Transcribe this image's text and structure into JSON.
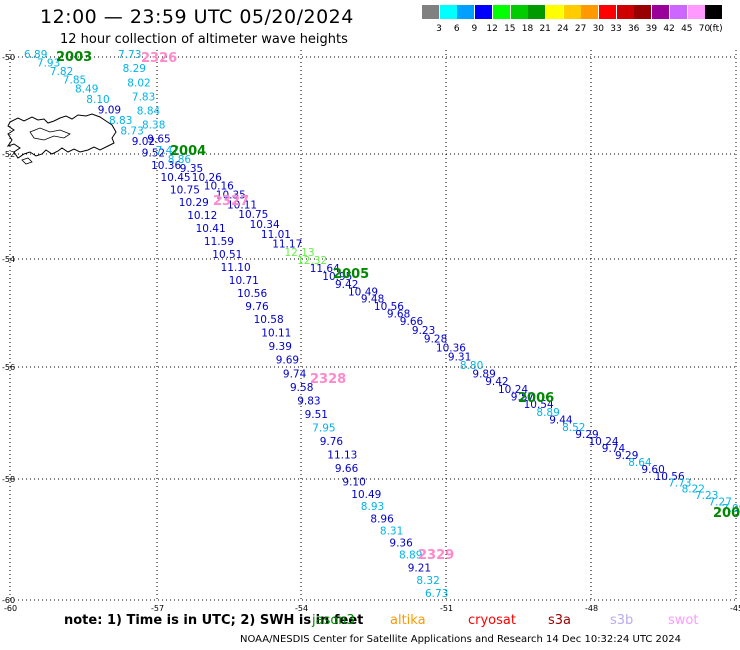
{
  "header": {
    "title": "12:00 — 23:59 UTC 05/20/2024",
    "subtitle": "12 hour collection of altimeter wave heights"
  },
  "legend": {
    "unit": "(ft)",
    "items": [
      {
        "label": "3",
        "color": "#808080"
      },
      {
        "label": "6",
        "color": "#00ffff"
      },
      {
        "label": "9",
        "color": "#00a0ff"
      },
      {
        "label": "12",
        "color": "#0000ff"
      },
      {
        "label": "15",
        "color": "#00ff00"
      },
      {
        "label": "18",
        "color": "#00cc00"
      },
      {
        "label": "21",
        "color": "#009900"
      },
      {
        "label": "24",
        "color": "#ffff00"
      },
      {
        "label": "27",
        "color": "#ffcc00"
      },
      {
        "label": "30",
        "color": "#ff9900"
      },
      {
        "label": "33",
        "color": "#ff0000"
      },
      {
        "label": "36",
        "color": "#cc0000"
      },
      {
        "label": "39",
        "color": "#990000"
      },
      {
        "label": "42",
        "color": "#990099"
      },
      {
        "label": "45",
        "color": "#cc66ff"
      },
      {
        "label": "70",
        "color": "#ff99ff"
      },
      {
        "label": "",
        "color": "#000000"
      }
    ]
  },
  "axes": {
    "lat_labels": [
      "-50",
      "-52",
      "-54",
      "-56",
      "-58",
      "-60"
    ],
    "lon_labels": [
      "-60",
      "-57",
      "-54",
      "-51",
      "-48",
      "-45"
    ]
  },
  "colors": {
    "blue": "#0000cc",
    "cyan": "#00b4e6",
    "pink": "#ff88cc",
    "green": "#008800",
    "lightgreen": "#66ee44"
  },
  "tracks": [
    {
      "name": "trackA",
      "points": [
        {
          "v": "6.89",
          "c": "cyan"
        },
        {
          "v": "7.93",
          "c": "cyan"
        },
        {
          "v": "7.82",
          "c": "cyan"
        },
        {
          "v": "7.85",
          "c": "cyan"
        },
        {
          "v": "8.49",
          "c": "cyan"
        },
        {
          "v": "8.10",
          "c": "cyan"
        },
        {
          "v": "9.09",
          "c": "blue"
        },
        {
          "v": "8.83",
          "c": "cyan"
        },
        {
          "v": "8.73",
          "c": "cyan"
        },
        {
          "v": "9.02",
          "c": "blue"
        },
        {
          "v": "9.52",
          "c": "blue"
        },
        {
          "v": "10.36",
          "c": "blue"
        },
        {
          "v": "10.45",
          "c": "blue"
        },
        {
          "v": "10.75",
          "c": "blue"
        },
        {
          "v": "10.29",
          "c": "blue"
        },
        {
          "v": "10.12",
          "c": "blue"
        },
        {
          "v": "10.41",
          "c": "blue"
        },
        {
          "v": "11.59",
          "c": "blue"
        },
        {
          "v": "10.51",
          "c": "blue"
        },
        {
          "v": "11.10",
          "c": "blue"
        },
        {
          "v": "10.71",
          "c": "blue"
        },
        {
          "v": "10.56",
          "c": "blue"
        },
        {
          "v": "9.76",
          "c": "blue"
        },
        {
          "v": "10.58",
          "c": "blue"
        },
        {
          "v": "10.11",
          "c": "blue"
        },
        {
          "v": "9.39",
          "c": "blue"
        },
        {
          "v": "9.69",
          "c": "blue"
        },
        {
          "v": "9.74",
          "c": "blue"
        },
        {
          "v": "9.58",
          "c": "blue"
        },
        {
          "v": "9.83",
          "c": "blue"
        },
        {
          "v": "9.51",
          "c": "blue"
        },
        {
          "v": "7.95",
          "c": "cyan"
        },
        {
          "v": "9.76",
          "c": "blue"
        },
        {
          "v": "11.13",
          "c": "blue"
        },
        {
          "v": "9.66",
          "c": "blue"
        },
        {
          "v": "9.10",
          "c": "blue"
        },
        {
          "v": "10.49",
          "c": "blue"
        },
        {
          "v": "8.93",
          "c": "cyan"
        },
        {
          "v": "8.96",
          "c": "blue"
        },
        {
          "v": "8.31",
          "c": "cyan"
        },
        {
          "v": "9.36",
          "c": "blue"
        },
        {
          "v": "8.89",
          "c": "cyan"
        },
        {
          "v": "9.21",
          "c": "blue"
        },
        {
          "v": "8.32",
          "c": "cyan"
        },
        {
          "v": "6.73",
          "c": "cyan"
        }
      ]
    },
    {
      "name": "trackB",
      "points": [
        {
          "v": "7.73",
          "c": "cyan"
        },
        {
          "v": "8.29",
          "c": "cyan"
        },
        {
          "v": "8.02",
          "c": "cyan"
        },
        {
          "v": "7.83",
          "c": "cyan"
        },
        {
          "v": "8.84",
          "c": "cyan"
        },
        {
          "v": "8.38",
          "c": "cyan"
        },
        {
          "v": "9.65",
          "c": "blue"
        },
        {
          "v": "7.47",
          "c": "cyan"
        },
        {
          "v": "8.86",
          "c": "cyan"
        },
        {
          "v": "9.35",
          "c": "blue"
        },
        {
          "v": "10.26",
          "c": "blue"
        },
        {
          "v": "10.16",
          "c": "blue"
        },
        {
          "v": "10.35",
          "c": "blue"
        },
        {
          "v": "10.11",
          "c": "blue"
        },
        {
          "v": "10.75",
          "c": "blue"
        },
        {
          "v": "10.34",
          "c": "blue"
        },
        {
          "v": "11.01",
          "c": "blue"
        },
        {
          "v": "11.17",
          "c": "blue"
        },
        {
          "v": "12.13",
          "c": "lightgreen"
        },
        {
          "v": "12.32",
          "c": "lightgreen"
        },
        {
          "v": "11.64",
          "c": "blue"
        },
        {
          "v": "10.95",
          "c": "blue"
        },
        {
          "v": "9.42",
          "c": "blue"
        },
        {
          "v": "10.49",
          "c": "blue"
        },
        {
          "v": "9.48",
          "c": "blue"
        },
        {
          "v": "10.56",
          "c": "blue"
        },
        {
          "v": "9.68",
          "c": "blue"
        },
        {
          "v": "9.66",
          "c": "blue"
        },
        {
          "v": "9.23",
          "c": "blue"
        },
        {
          "v": "9.28",
          "c": "blue"
        },
        {
          "v": "10.36",
          "c": "blue"
        },
        {
          "v": "9.31",
          "c": "blue"
        },
        {
          "v": "8.80",
          "c": "cyan"
        },
        {
          "v": "9.89",
          "c": "blue"
        },
        {
          "v": "9.42",
          "c": "blue"
        },
        {
          "v": "10.24",
          "c": "blue"
        },
        {
          "v": "9.57",
          "c": "blue"
        },
        {
          "v": "10.54",
          "c": "blue"
        },
        {
          "v": "8.89",
          "c": "cyan"
        },
        {
          "v": "9.44",
          "c": "blue"
        },
        {
          "v": "8.52",
          "c": "cyan"
        },
        {
          "v": "9.29",
          "c": "blue"
        },
        {
          "v": "10.24",
          "c": "blue"
        },
        {
          "v": "9.74",
          "c": "blue"
        },
        {
          "v": "9.29",
          "c": "blue"
        },
        {
          "v": "8.64",
          "c": "cyan"
        },
        {
          "v": "9.60",
          "c": "blue"
        },
        {
          "v": "10.56",
          "c": "blue"
        },
        {
          "v": "7.73",
          "c": "cyan"
        },
        {
          "v": "8.22",
          "c": "cyan"
        },
        {
          "v": "7.23",
          "c": "cyan"
        },
        {
          "v": "7.27",
          "c": "cyan"
        },
        {
          "v": "7.09",
          "c": "cyan"
        }
      ]
    }
  ],
  "time_labels": [
    {
      "t": "2003",
      "c": "green"
    },
    {
      "t": "2326",
      "c": "pink"
    },
    {
      "t": "2004",
      "c": "green"
    },
    {
      "t": "2327",
      "c": "pink"
    },
    {
      "t": "2005",
      "c": "green"
    },
    {
      "t": "2328",
      "c": "pink"
    },
    {
      "t": "2006",
      "c": "green"
    },
    {
      "t": "2329",
      "c": "pink"
    },
    {
      "t": "200",
      "c": "green"
    }
  ],
  "footer": {
    "note": "note:  1) Time is in UTC;  2) SWH is in feet",
    "satellites": [
      {
        "name": "jason3",
        "color": "#008800"
      },
      {
        "name": "altika",
        "color": "#ff9900"
      },
      {
        "name": "cryosat",
        "color": "#ff0000"
      },
      {
        "name": "s3a",
        "color": "#990000"
      },
      {
        "name": "s3b",
        "color": "#bbaaee"
      },
      {
        "name": "swot",
        "color": "#ff99ff"
      }
    ],
    "credit": "NOAA/NESDIS Center for Satellite Applications and Research     14 Dec 10:32:24 UTC 2024"
  }
}
